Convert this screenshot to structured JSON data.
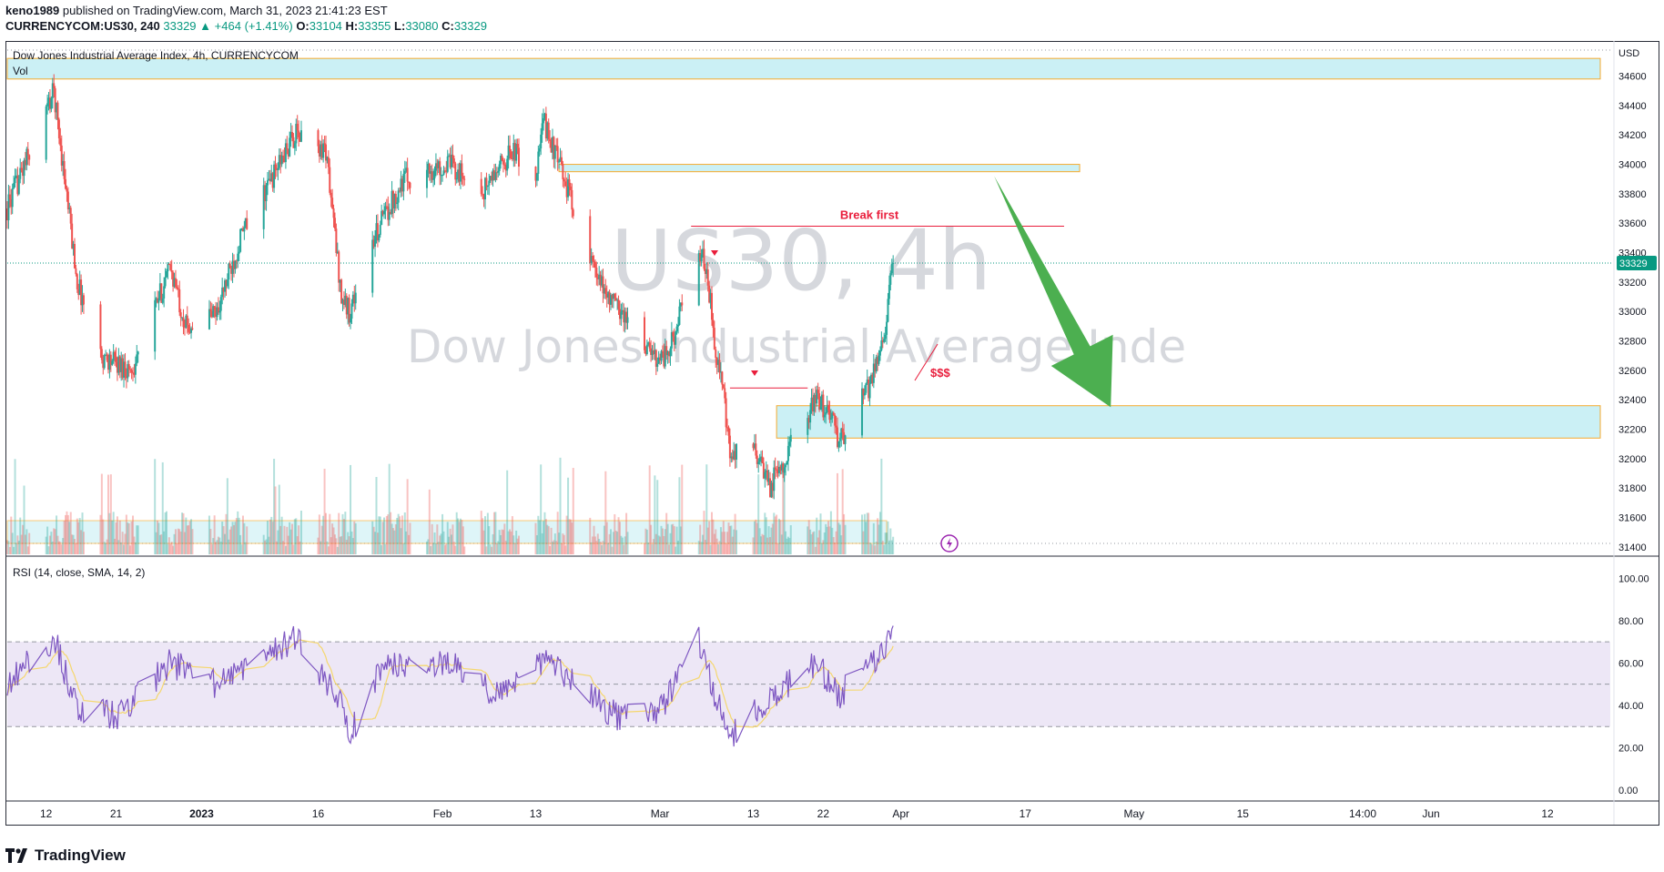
{
  "header": {
    "publisher": "keno1989",
    "published_text": "published on TradingView.com, March 31, 2023 21:41:23 EST",
    "symbol": "CURRENCYCOM:US30, 240",
    "last": "33329",
    "change": "+464 (+1.41%)",
    "open_label": "O:",
    "open": "33104",
    "high_label": "H:",
    "high": "33355",
    "low_label": "L:",
    "low": "33080",
    "close_label": "C:",
    "close": "33329"
  },
  "legend": {
    "title": "Dow Jones Industrial Average Index, 4h, CURRENCYCOM",
    "vol": "Vol",
    "rsi": "RSI (14, close, SMA, 14, 2)"
  },
  "watermark": {
    "line1": "US30, 4h",
    "line2": "Dow Jones Industrial Average Inde"
  },
  "annotations": {
    "break_first": "Break first",
    "dollars": "$$$"
  },
  "footer": {
    "brand": "TradingView"
  },
  "colors": {
    "up": "#26a69a",
    "down": "#ef5350",
    "zone_fill": "#c9f0f5",
    "zone_border": "#f5a623",
    "arrow": "#4caf50",
    "rsi_line": "#7e57c2",
    "rsi_ma": "#f5d76e",
    "rsi_band": "#ede7f6",
    "annot": "#e91e3c",
    "last_badge": "#089981"
  },
  "chart_data": [
    {
      "type": "candlestick",
      "title": "Dow Jones Industrial Average Index, 4h, CURRENCYCOM",
      "currency": "USD",
      "ylim": [
        31350,
        34820
      ],
      "price_ticks": [
        34600,
        34400,
        34200,
        34000,
        33800,
        33600,
        33400,
        33200,
        33000,
        32800,
        32600,
        32400,
        32200,
        32000,
        31800,
        31600,
        31400
      ],
      "last_price": 33329,
      "x_ticks": [
        "12",
        "21",
        "2023",
        "16",
        "Feb",
        "13",
        "Mar",
        "13",
        "22",
        "Apr",
        "17",
        "May",
        "15",
        "14:00",
        "Jun",
        "12"
      ],
      "path_keypoints": [
        {
          "date": "2022-12-07",
          "price": 33700
        },
        {
          "date": "2022-12-13",
          "price": 34500
        },
        {
          "date": "2022-12-16",
          "price": 33200
        },
        {
          "date": "2022-12-19",
          "price": 32700
        },
        {
          "date": "2022-12-23",
          "price": 32600
        },
        {
          "date": "2022-12-28",
          "price": 33300
        },
        {
          "date": "2022-12-30",
          "price": 32900
        },
        {
          "date": "2023-01-03",
          "price": 33000
        },
        {
          "date": "2023-01-06",
          "price": 33500
        },
        {
          "date": "2023-01-13",
          "price": 34200
        },
        {
          "date": "2023-01-17",
          "price": 34100
        },
        {
          "date": "2023-01-19",
          "price": 33100
        },
        {
          "date": "2023-01-20",
          "price": 33000
        },
        {
          "date": "2023-01-24",
          "price": 33600
        },
        {
          "date": "2023-01-27",
          "price": 33900
        },
        {
          "date": "2023-02-02",
          "price": 34000
        },
        {
          "date": "2023-02-06",
          "price": 33800
        },
        {
          "date": "2023-02-10",
          "price": 34100
        },
        {
          "date": "2023-02-13",
          "price": 33900
        },
        {
          "date": "2023-02-14",
          "price": 34300
        },
        {
          "date": "2023-02-16",
          "price": 34000
        },
        {
          "date": "2023-02-18",
          "price": 33700
        },
        {
          "date": "2023-02-21",
          "price": 33200
        },
        {
          "date": "2023-02-24",
          "price": 33000
        },
        {
          "date": "2023-02-28",
          "price": 32700
        },
        {
          "date": "2023-03-02",
          "price": 32700
        },
        {
          "date": "2023-03-06",
          "price": 33400
        },
        {
          "date": "2023-03-07",
          "price": 33300
        },
        {
          "date": "2023-03-08",
          "price": 32800
        },
        {
          "date": "2023-03-09",
          "price": 32500
        },
        {
          "date": "2023-03-10",
          "price": 32000
        },
        {
          "date": "2023-03-13",
          "price": 32100
        },
        {
          "date": "2023-03-15",
          "price": 31800
        },
        {
          "date": "2023-03-17",
          "price": 32000
        },
        {
          "date": "2023-03-21",
          "price": 32400
        },
        {
          "date": "2023-03-23",
          "price": 32300
        },
        {
          "date": "2023-03-24",
          "price": 32100
        },
        {
          "date": "2023-03-28",
          "price": 32500
        },
        {
          "date": "2023-03-30",
          "price": 32900
        },
        {
          "date": "2023-03-31",
          "price": 33329
        }
      ],
      "zones": [
        {
          "from_date": "2022-12-07",
          "to_date": "2023-06-30",
          "low": 34580,
          "high": 34720
        },
        {
          "from_date": "2023-02-16",
          "to_date": "2023-04-24",
          "low": 33950,
          "high": 34000
        },
        {
          "from_date": "2023-03-16",
          "to_date": "2023-06-30",
          "low": 32140,
          "high": 32360
        }
      ],
      "lines": [
        {
          "label": "Break first",
          "from_date": "2023-03-05",
          "to_date": "2023-04-22",
          "price": 33580
        },
        {
          "label": "",
          "from_date": "2023-03-10",
          "to_date": "2023-03-20",
          "price": 32480
        }
      ],
      "arrow": {
        "from_date": "2023-04-13",
        "from_price": 33920,
        "to_date": "2023-04-28",
        "to_price": 32350
      }
    },
    {
      "type": "bar",
      "series_name": "Vol",
      "note": "volume histogram with support zone overlay at bottom of price pane"
    },
    {
      "type": "line",
      "title": "RSI (14, close, SMA, 14, 2)",
      "ylim": [
        -3,
        110
      ],
      "y_ticks": [
        "100.00",
        "80.00",
        "60.00",
        "40.00",
        "20.00",
        "0.00"
      ],
      "bands": {
        "upper": 70,
        "mid": 50,
        "lower": 30
      },
      "rsi_keypoints": [
        {
          "date": "2022-12-07",
          "value": 50
        },
        {
          "date": "2022-12-13",
          "value": 72
        },
        {
          "date": "2022-12-16",
          "value": 38
        },
        {
          "date": "2022-12-21",
          "value": 35
        },
        {
          "date": "2022-12-28",
          "value": 60
        },
        {
          "date": "2023-01-03",
          "value": 50
        },
        {
          "date": "2023-01-13",
          "value": 72
        },
        {
          "date": "2023-01-19",
          "value": 40
        },
        {
          "date": "2023-01-20",
          "value": 25
        },
        {
          "date": "2023-01-24",
          "value": 58
        },
        {
          "date": "2023-02-02",
          "value": 60
        },
        {
          "date": "2023-02-08",
          "value": 45
        },
        {
          "date": "2023-02-14",
          "value": 62
        },
        {
          "date": "2023-02-18",
          "value": 50
        },
        {
          "date": "2023-02-24",
          "value": 33
        },
        {
          "date": "2023-03-01",
          "value": 38
        },
        {
          "date": "2023-03-06",
          "value": 70
        },
        {
          "date": "2023-03-08",
          "value": 45
        },
        {
          "date": "2023-03-10",
          "value": 25
        },
        {
          "date": "2023-03-14",
          "value": 40
        },
        {
          "date": "2023-03-21",
          "value": 60
        },
        {
          "date": "2023-03-24",
          "value": 45
        },
        {
          "date": "2023-03-28",
          "value": 58
        },
        {
          "date": "2023-03-30",
          "value": 65
        },
        {
          "date": "2023-03-31",
          "value": 77
        }
      ]
    }
  ]
}
